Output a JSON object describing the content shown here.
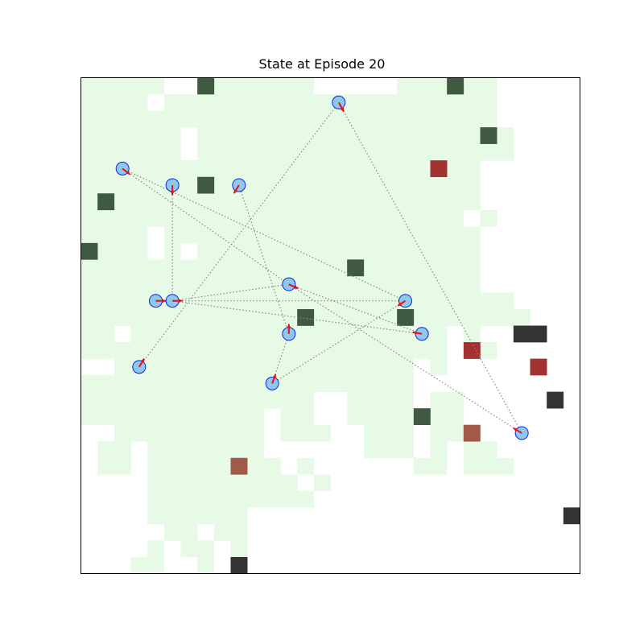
{
  "title": "State at Episode 20",
  "grid": {
    "cols": 30,
    "rows": 30
  },
  "colors": {
    "explored": "#e6fae6",
    "obstacle_green": "#3f5a40",
    "obstacle_black": "#333333",
    "target_red": "#a33232",
    "target_brown": "#a25a48",
    "agent_fill": "#8ec8ee",
    "agent_stroke": "#0b23e6",
    "arrow": "#e81010",
    "link": "#888888"
  },
  "explored_runs": [
    [
      0,
      0,
      5
    ],
    [
      0,
      7,
      14
    ],
    [
      0,
      19,
      22
    ],
    [
      0,
      23,
      25
    ],
    [
      1,
      0,
      4
    ],
    [
      1,
      5,
      25
    ],
    [
      2,
      0,
      25
    ],
    [
      3,
      0,
      6
    ],
    [
      3,
      7,
      26
    ],
    [
      4,
      0,
      6
    ],
    [
      4,
      7,
      26
    ],
    [
      5,
      0,
      24
    ],
    [
      6,
      0,
      24
    ],
    [
      7,
      0,
      24
    ],
    [
      8,
      0,
      23
    ],
    [
      8,
      24,
      25
    ],
    [
      9,
      0,
      4
    ],
    [
      9,
      5,
      24
    ],
    [
      10,
      0,
      4
    ],
    [
      10,
      5,
      6
    ],
    [
      10,
      7,
      24
    ],
    [
      11,
      0,
      24
    ],
    [
      12,
      0,
      24
    ],
    [
      13,
      0,
      26
    ],
    [
      14,
      0,
      27
    ],
    [
      15,
      0,
      2
    ],
    [
      15,
      3,
      22
    ],
    [
      15,
      23,
      24
    ],
    [
      16,
      0,
      22
    ],
    [
      16,
      24,
      25
    ],
    [
      17,
      2,
      20
    ],
    [
      17,
      21,
      22
    ],
    [
      18,
      0,
      20
    ],
    [
      19,
      0,
      14
    ],
    [
      19,
      16,
      20
    ],
    [
      19,
      21,
      23
    ],
    [
      20,
      0,
      11
    ],
    [
      20,
      12,
      14
    ],
    [
      20,
      16,
      20
    ],
    [
      20,
      21,
      23
    ],
    [
      21,
      2,
      11
    ],
    [
      21,
      12,
      15
    ],
    [
      21,
      17,
      20
    ],
    [
      21,
      21,
      24
    ],
    [
      22,
      1,
      3
    ],
    [
      22,
      4,
      11
    ],
    [
      22,
      17,
      20
    ],
    [
      22,
      21,
      22
    ],
    [
      22,
      23,
      25
    ],
    [
      23,
      1,
      3
    ],
    [
      23,
      4,
      12
    ],
    [
      23,
      13,
      14
    ],
    [
      23,
      20,
      22
    ],
    [
      23,
      23,
      26
    ],
    [
      24,
      4,
      13
    ],
    [
      24,
      14,
      15
    ],
    [
      25,
      4,
      14
    ],
    [
      26,
      4,
      10
    ],
    [
      27,
      5,
      7
    ],
    [
      27,
      8,
      10
    ],
    [
      28,
      4,
      5
    ],
    [
      28,
      6,
      8
    ],
    [
      28,
      9,
      10
    ],
    [
      29,
      3,
      5
    ],
    [
      29,
      7,
      8
    ]
  ],
  "obstacles": [
    {
      "col": 7,
      "row": 0,
      "kind": "green"
    },
    {
      "col": 22,
      "row": 0,
      "kind": "green"
    },
    {
      "col": 24,
      "row": 3,
      "kind": "green"
    },
    {
      "col": 7,
      "row": 6,
      "kind": "green"
    },
    {
      "col": 1,
      "row": 7,
      "kind": "green"
    },
    {
      "col": 0,
      "row": 10,
      "kind": "green"
    },
    {
      "col": 16,
      "row": 11,
      "kind": "green"
    },
    {
      "col": 13,
      "row": 14,
      "kind": "green"
    },
    {
      "col": 19,
      "row": 14,
      "kind": "green"
    },
    {
      "col": 20,
      "row": 20,
      "kind": "green"
    },
    {
      "col": 26,
      "row": 15,
      "kind": "black"
    },
    {
      "col": 27,
      "row": 15,
      "kind": "black"
    },
    {
      "col": 28,
      "row": 19,
      "kind": "black"
    },
    {
      "col": 29,
      "row": 26,
      "kind": "black"
    },
    {
      "col": 9,
      "row": 29,
      "kind": "black"
    },
    {
      "col": 21,
      "row": 5,
      "kind": "red"
    },
    {
      "col": 23,
      "row": 16,
      "kind": "red"
    },
    {
      "col": 27,
      "row": 17,
      "kind": "red"
    },
    {
      "col": 23,
      "row": 21,
      "kind": "brown"
    },
    {
      "col": 9,
      "row": 23,
      "kind": "brown"
    }
  ],
  "agents": [
    {
      "x": 15.5,
      "y": 1.5,
      "dx": 0.3,
      "dy": 0.55
    },
    {
      "x": 2.5,
      "y": 5.5,
      "dx": 0.45,
      "dy": 0.35
    },
    {
      "x": 5.5,
      "y": 6.5,
      "dx": 0,
      "dy": 0.6
    },
    {
      "x": 9.5,
      "y": 6.5,
      "dx": -0.3,
      "dy": 0.5
    },
    {
      "x": 12.5,
      "y": 12.5,
      "dx": 0.55,
      "dy": 0.25
    },
    {
      "x": 4.5,
      "y": 13.5,
      "dx": 0.6,
      "dy": 0
    },
    {
      "x": 5.5,
      "y": 13.5,
      "dx": 0.6,
      "dy": 0
    },
    {
      "x": 19.5,
      "y": 13.5,
      "dx": -0.45,
      "dy": 0.3
    },
    {
      "x": 12.5,
      "y": 15.5,
      "dx": 0,
      "dy": -0.6
    },
    {
      "x": 20.5,
      "y": 15.5,
      "dx": -0.55,
      "dy": -0.1
    },
    {
      "x": 3.5,
      "y": 17.5,
      "dx": 0.3,
      "dy": -0.5
    },
    {
      "x": 11.5,
      "y": 18.5,
      "dx": 0.2,
      "dy": -0.55
    },
    {
      "x": 26.5,
      "y": 21.5,
      "dx": -0.5,
      "dy": -0.3
    }
  ],
  "links": [
    [
      0,
      12
    ],
    [
      0,
      10
    ],
    [
      1,
      4
    ],
    [
      1,
      7
    ],
    [
      2,
      6
    ],
    [
      3,
      8
    ],
    [
      5,
      6
    ],
    [
      6,
      4
    ],
    [
      6,
      7
    ],
    [
      6,
      9
    ],
    [
      4,
      9
    ],
    [
      8,
      11
    ],
    [
      11,
      7
    ],
    [
      12,
      4
    ]
  ]
}
